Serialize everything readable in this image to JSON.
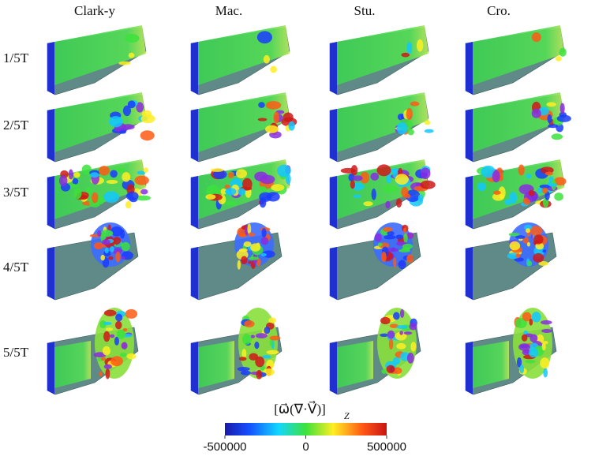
{
  "header": {
    "columns": [
      "Clark-y",
      "Mac.",
      "Stu.",
      "Cro."
    ]
  },
  "rows": [
    "1/5T",
    "2/5T",
    "3/5T",
    "4/5T",
    "5/5T"
  ],
  "colorbar": {
    "title": "[ω⃗(∇·V⃗)]",
    "title_subscript": "Z",
    "range": [
      -500000,
      500000
    ],
    "ticks": [
      -500000,
      0,
      500000
    ]
  }
}
